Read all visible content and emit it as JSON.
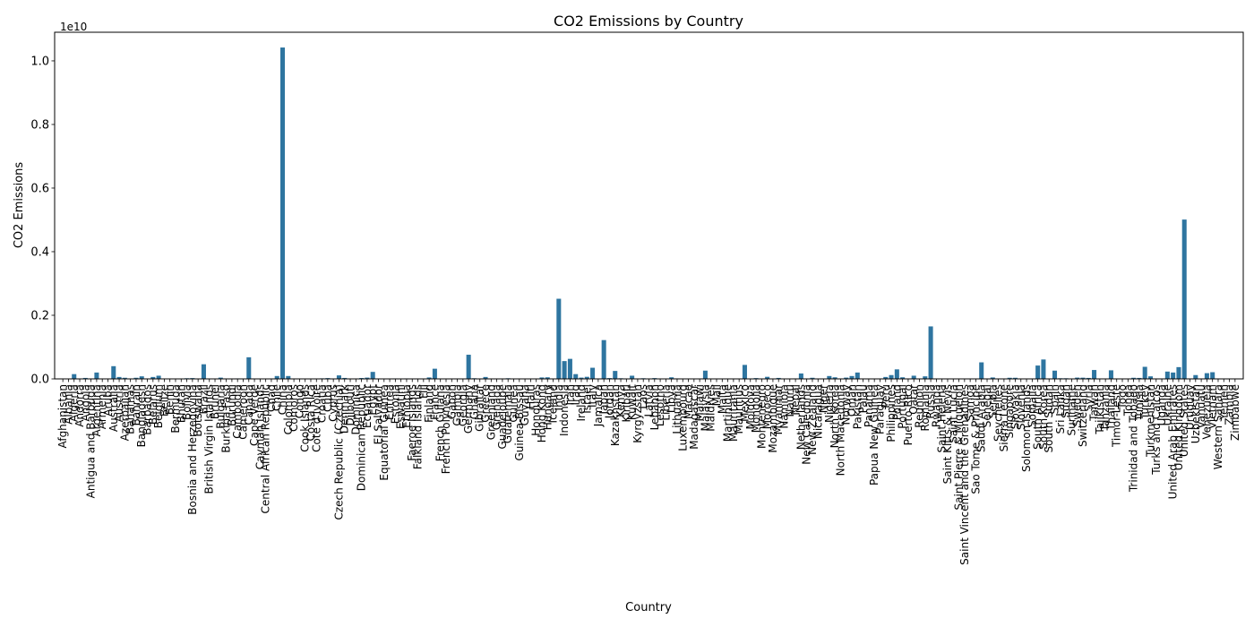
{
  "chart_data": {
    "type": "bar",
    "title": "CO2 Emissions by Country",
    "xlabel": "Country",
    "ylabel": "CO2 Emissions",
    "offset_text": "1e10",
    "ylim": [
      0,
      10900000000
    ],
    "y_ticks": [
      0,
      2000000000,
      4000000000,
      6000000000,
      8000000000,
      10000000000
    ],
    "y_tick_labels": [
      "0.0",
      "0.2",
      "0.4",
      "0.6",
      "0.8",
      "1.0"
    ],
    "grid": false,
    "bar_color": "#2e75a0",
    "categories": [
      "Afghanistan",
      "Albania",
      "Algeria",
      "Andorra",
      "Angola",
      "Antigua and Barbuda",
      "Argentina",
      "Armenia",
      "Aruba",
      "Australia",
      "Austria",
      "Azerbaijan",
      "Bahamas",
      "Bahrain",
      "Bangladesh",
      "Barbados",
      "Belarus",
      "Belgium",
      "Belize",
      "Benin",
      "Bermuda",
      "Bhutan",
      "Bolivia",
      "Bosnia and Herzegovina",
      "Botswana",
      "Brazil",
      "British Virgin Islands",
      "Brunei",
      "Bulgaria",
      "Burkina Faso",
      "Burundi",
      "Cambodia",
      "Cameroon",
      "Canada",
      "Cape Verde",
      "Cayman Islands",
      "Central African Republic",
      "Chad",
      "Chile",
      "China",
      "Colombia",
      "Comoros",
      "Congo",
      "Cook Islands",
      "Costa Rica",
      "Cote d'Ivoire",
      "Croatia",
      "Cuba",
      "Cyprus",
      "Czech Republic (Czechia)",
      "Denmark",
      "Djibouti",
      "Dominica",
      "Dominican Republic",
      "Ecuador",
      "Egypt",
      "El Salvador",
      "Equatorial Guinea",
      "Eritrea",
      "Estonia",
      "Eswatini",
      "Ethiopia",
      "Faeroe Islands",
      "Falkland Islands",
      "Fiji",
      "Finland",
      "France",
      "French Guiana",
      "French Polynesia",
      "Gabon",
      "Gambia",
      "Georgia",
      "Germany",
      "Ghana",
      "Gibraltar",
      "Greece",
      "Greenland",
      "Grenada",
      "Guadeloupe",
      "Guatemala",
      "Guinea",
      "Guinea-Bissau",
      "Guyana",
      "Haiti",
      "Honduras",
      "Hong Kong",
      "Hungary",
      "Iceland",
      "India",
      "Indonesia",
      "Iran",
      "Iraq",
      "Ireland",
      "Israel",
      "Italy",
      "Jamaica",
      "Japan",
      "Jordan",
      "Kazakhstan",
      "Kenya",
      "Kiribati",
      "Kuwait",
      "Kyrgyzstan",
      "Laos",
      "Latvia",
      "Lebanon",
      "Lesotho",
      "Liberia",
      "Libya",
      "Lithuania",
      "Luxembourg",
      "Macao",
      "Madagascar",
      "Malawi",
      "Malaysia",
      "Maldives",
      "Mali",
      "Malta",
      "Martinique",
      "Mauritania",
      "Mauritius",
      "Mexico",
      "Moldova",
      "Mongolia",
      "Montenegro",
      "Morocco",
      "Mozambique",
      "Myanmar",
      "Namibia",
      "Nauru",
      "Nepal",
      "Netherlands",
      "New Caledonia",
      "New Zealand",
      "Nicaragua",
      "Niger",
      "Nigeria",
      "North Korea",
      "North Macedonia",
      "Norway",
      "Oman",
      "Pakistan",
      "Palau",
      "Panama",
      "Papua New Guinea",
      "Paraguay",
      "Peru",
      "Philippines",
      "Poland",
      "Portugal",
      "Puerto Rico",
      "Qatar",
      "Reunion",
      "Romania",
      "Russia",
      "Rwanda",
      "Saint Helena",
      "Saint Kitts & Nevis",
      "Saint Lucia",
      "Saint Pierre & Miquelon",
      "Saint Vincent and the Grenadines",
      "Samoa",
      "Sao Tome & Principe",
      "Saudi Arabia",
      "Senegal",
      "Serbia",
      "Seychelles",
      "Sierra Leone",
      "Singapore",
      "Slovakia",
      "Slovenia",
      "Solomon Islands",
      "Somalia",
      "South Africa",
      "South Korea",
      "South Sudan",
      "Spain",
      "Sri Lanka",
      "Sudan",
      "Suriname",
      "Sweden",
      "Switzerland",
      "Syria",
      "Taiwan",
      "Tajikistan",
      "Tanzania",
      "Thailand",
      "Timor-Leste",
      "Togo",
      "Tonga",
      "Trinidad and Tobago",
      "Tunisia",
      "Turkey",
      "Turkmenistan",
      "Turks and Caicos",
      "Uganda",
      "Ukraine",
      "United Arab Emirates",
      "United Kingdom",
      "United States",
      "Uruguay",
      "Uzbekistan",
      "Vanuatu",
      "Venezuela",
      "Vietnam",
      "Western Sahara",
      "Yemen",
      "Zambia",
      "Zimbabwe"
    ],
    "values": [
      10000000,
      5000000,
      150000000,
      500000,
      30000000,
      500000,
      200000000,
      5000000,
      1000000,
      400000000,
      60000000,
      35000000,
      2000000,
      35000000,
      80000000,
      1000000,
      60000000,
      100000000,
      600000,
      7000000,
      600000,
      1500000,
      20000000,
      25000000,
      7000000,
      460000000,
      200000,
      8000000,
      40000000,
      4000000,
      500000,
      15000000,
      8000000,
      680000000,
      600000,
      600000,
      300000,
      1000000,
      90000000,
      10420000000,
      90000000,
      200000,
      3000000,
      100000,
      8000000,
      12000000,
      17000000,
      25000000,
      7000000,
      110000000,
      30000000,
      600000,
      200000,
      27000000,
      40000000,
      220000000,
      7000000,
      6000000,
      700000,
      15000000,
      1000000,
      15000000,
      700000,
      50000,
      2000000,
      45000000,
      320000000,
      600000,
      800000,
      4000000,
      600000,
      10000000,
      760000000,
      20000000,
      600000,
      60000000,
      500000,
      300000,
      2000000,
      20000000,
      3000000,
      300000,
      2500000,
      3000000,
      10000000,
      45000000,
      50000000,
      3000000,
      2520000000,
      560000000,
      630000000,
      150000000,
      40000000,
      65000000,
      350000000,
      8000000,
      1220000000,
      25000000,
      250000000,
      20000000,
      100000,
      100000000,
      10000000,
      20000000,
      7000000,
      25000000,
      3000000,
      1000000,
      50000000,
      15000000,
      9000000,
      2000000,
      4000000,
      2000000,
      260000000,
      1500000,
      4000000,
      2000000,
      2000000,
      4000000,
      4000000,
      440000000,
      5000000,
      25000000,
      2500000,
      65000000,
      8000000,
      30000000,
      4000000,
      50000,
      15000000,
      170000000,
      8000000,
      35000000,
      6000000,
      2000000,
      90000000,
      50000000,
      7000000,
      40000000,
      90000000,
      200000000,
      300000,
      10000000,
      7000000,
      8000000,
      60000000,
      120000000,
      300000000,
      50000000,
      10000000,
      100000000,
      5000000,
      80000000,
      1650000000,
      1000000,
      50000,
      200000,
      400000,
      100000,
      300000,
      300000,
      200000,
      520000000,
      10000000,
      45000000,
      600000,
      1000000,
      35000000,
      35000000,
      14000000,
      400000,
      600000,
      420000000,
      610000000,
      1500000,
      260000000,
      20000000,
      20000000,
      2500000,
      40000000,
      38000000,
      30000000,
      280000000,
      6000000,
      12000000,
      270000000,
      500000,
      3000000,
      200000,
      35000000,
      30000000,
      380000000,
      80000000,
      300000,
      6000000,
      230000000,
      200000000,
      370000000,
      5010000000,
      7000000,
      120000000,
      200000,
      180000000,
      210000000,
      300000,
      10000000,
      7000000,
      10000000
    ]
  }
}
